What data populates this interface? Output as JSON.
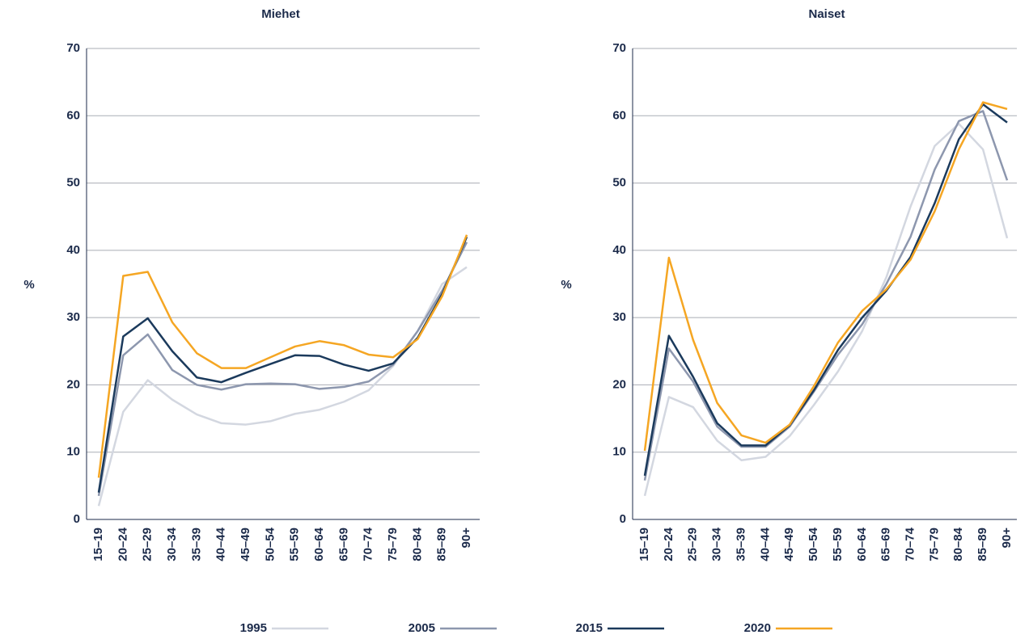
{
  "chart_data": [
    {
      "type": "line",
      "title": "Miehet",
      "y_label": "%",
      "categories": [
        "15–19",
        "20–24",
        "25–29",
        "30–34",
        "35–39",
        "40–44",
        "45–49",
        "50–54",
        "55–59",
        "60–64",
        "65–69",
        "70–74",
        "75–79",
        "80–84",
        "85–89",
        "90+"
      ],
      "ylim": [
        0,
        70
      ],
      "yticks": [
        0,
        10,
        20,
        30,
        40,
        50,
        60,
        70
      ],
      "grid": true,
      "series": [
        {
          "name": "1995",
          "color": "#d3d7e0",
          "values": [
            2,
            16,
            20.7,
            17.8,
            15.6,
            14.3,
            14.1,
            14.6,
            15.7,
            16.3,
            17.5,
            19.2,
            22.8,
            28,
            35,
            37.5
          ]
        },
        {
          "name": "2005",
          "color": "#8d97ae",
          "values": [
            3.5,
            24.4,
            27.5,
            22.2,
            20,
            19.3,
            20.1,
            20.2,
            20.1,
            19.4,
            19.7,
            20.5,
            23,
            28,
            34,
            41.2
          ]
        },
        {
          "name": "2015",
          "color": "#1b3a5c",
          "values": [
            4,
            27.2,
            29.9,
            25,
            21.1,
            20.4,
            21.8,
            23.1,
            24.4,
            24.3,
            23,
            22.1,
            23.2,
            27,
            33.5,
            42
          ]
        },
        {
          "name": "2020",
          "color": "#f5a623",
          "values": [
            6.2,
            36.2,
            36.8,
            29.3,
            24.7,
            22.5,
            22.5,
            24.1,
            25.7,
            26.5,
            25.9,
            24.5,
            24.1,
            26.8,
            33.2,
            42.3
          ]
        }
      ]
    },
    {
      "type": "line",
      "title": "Naiset",
      "y_label": "%",
      "categories": [
        "15–19",
        "20–24",
        "25–29",
        "30–34",
        "35–39",
        "40–44",
        "45–49",
        "50–54",
        "55–59",
        "60–64",
        "65–69",
        "70–74",
        "75–79",
        "80–84",
        "85–89",
        "90+"
      ],
      "ylim": [
        0,
        70
      ],
      "yticks": [
        0,
        10,
        20,
        30,
        40,
        50,
        60,
        70
      ],
      "grid": true,
      "series": [
        {
          "name": "1995",
          "color": "#d3d7e0",
          "values": [
            3.5,
            18.2,
            16.7,
            11.7,
            8.8,
            9.3,
            12.4,
            17,
            22,
            28,
            36,
            46.5,
            55.5,
            58.8,
            55,
            41.8
          ]
        },
        {
          "name": "2005",
          "color": "#8d97ae",
          "values": [
            5.8,
            25.4,
            20.5,
            13.8,
            10.8,
            10.8,
            13.8,
            19,
            24.5,
            29,
            35,
            42,
            52,
            59.2,
            60.7,
            50.4
          ]
        },
        {
          "name": "2015",
          "color": "#1b3a5c",
          "values": [
            6.5,
            27.3,
            21.2,
            14.3,
            11,
            11,
            14,
            19.2,
            25.2,
            30,
            34,
            39,
            47,
            56.5,
            61.7,
            59
          ]
        },
        {
          "name": "2020",
          "color": "#f5a623",
          "values": [
            10.2,
            38.9,
            26.7,
            17.3,
            12.5,
            11.4,
            14.1,
            19.8,
            26.3,
            31,
            34.2,
            38.6,
            45.8,
            55,
            62,
            61
          ]
        }
      ]
    }
  ]
}
